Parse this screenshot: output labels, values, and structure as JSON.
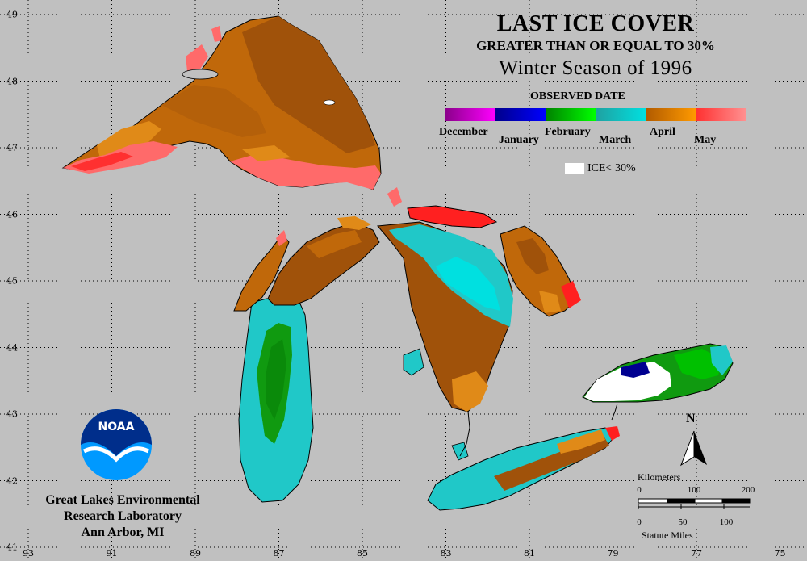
{
  "title": {
    "line1": "LAST ICE COVER",
    "line2": "GREATER THAN OR EQUAL TO 30%",
    "line3": "Winter Season of 1996"
  },
  "legend": {
    "heading": "OBSERVED DATE",
    "months": [
      "December",
      "January",
      "February",
      "March",
      "April",
      "May"
    ],
    "gradients": [
      [
        "#8b008b",
        "#ff00ff"
      ],
      [
        "#00008b",
        "#0000ff"
      ],
      [
        "#008000",
        "#00ff00"
      ],
      [
        "#20a0a0",
        "#00e0e0"
      ],
      [
        "#b05a00",
        "#ff9a00"
      ],
      [
        "#ff3030",
        "#ff9090"
      ]
    ],
    "ice_label": "ICE< 30%",
    "ice_color": "#ffffff"
  },
  "axes": {
    "longitudes": [
      "93",
      "91",
      "89",
      "87",
      "85",
      "83",
      "81",
      "79",
      "77",
      "75"
    ],
    "latitudes": [
      "49",
      "48",
      "47",
      "46",
      "45",
      "44",
      "43",
      "42",
      "41"
    ]
  },
  "organization": {
    "line1": "Great Lakes Environmental",
    "line2": "Research Laboratory",
    "line3": "Ann Arbor, MI"
  },
  "logo": {
    "text": "NOAA",
    "colors": {
      "top": "#002e8b",
      "bottom": "#0099ff"
    }
  },
  "scale_bar": {
    "km_label": "Kilometers",
    "km_ticks": [
      "0",
      "100",
      "200"
    ],
    "mi_label": "Statute Miles",
    "mi_ticks": [
      "0",
      "50",
      "100"
    ]
  },
  "north_arrow": {
    "label": "N"
  },
  "colors": {
    "background": "#c0c0c0",
    "land_outline": "#000000",
    "april_dark": "#a0520a",
    "april_mid": "#c0680a",
    "april_light": "#e08a18",
    "may_light": "#ff6a6a",
    "may_red": "#ff2020",
    "march": "#20c8c8",
    "march_light": "#00e0e0",
    "february": "#109a10",
    "february_light": "#00c000",
    "january": "#000090"
  }
}
